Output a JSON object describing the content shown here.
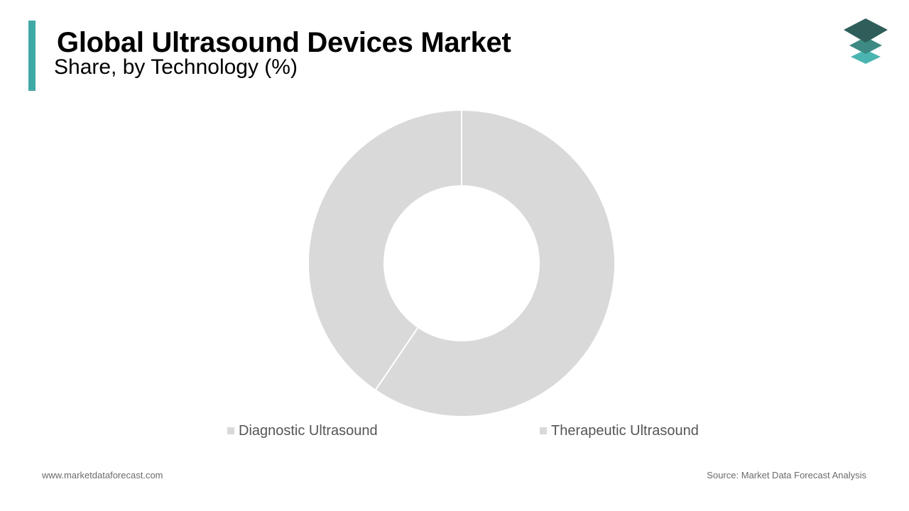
{
  "header": {
    "title": "Global Ultrasound Devices Market",
    "subtitle": "Share, by Technology (%)",
    "accent_color": "#3fa9a6",
    "logo_icon": "stacked-layers-icon"
  },
  "chart_data": {
    "type": "pie",
    "donut": true,
    "categories": [
      "Diagnostic Ultrasound",
      "Therapeutic Ultrasound"
    ],
    "values": [
      59.5,
      40.5
    ],
    "colors": [
      "#d9d9d9",
      "#d9d9d9"
    ],
    "legend_position": "bottom"
  },
  "footer": {
    "website": "www.marketdataforecast.com",
    "source": "Source: Market Data Forecast Analysis"
  }
}
